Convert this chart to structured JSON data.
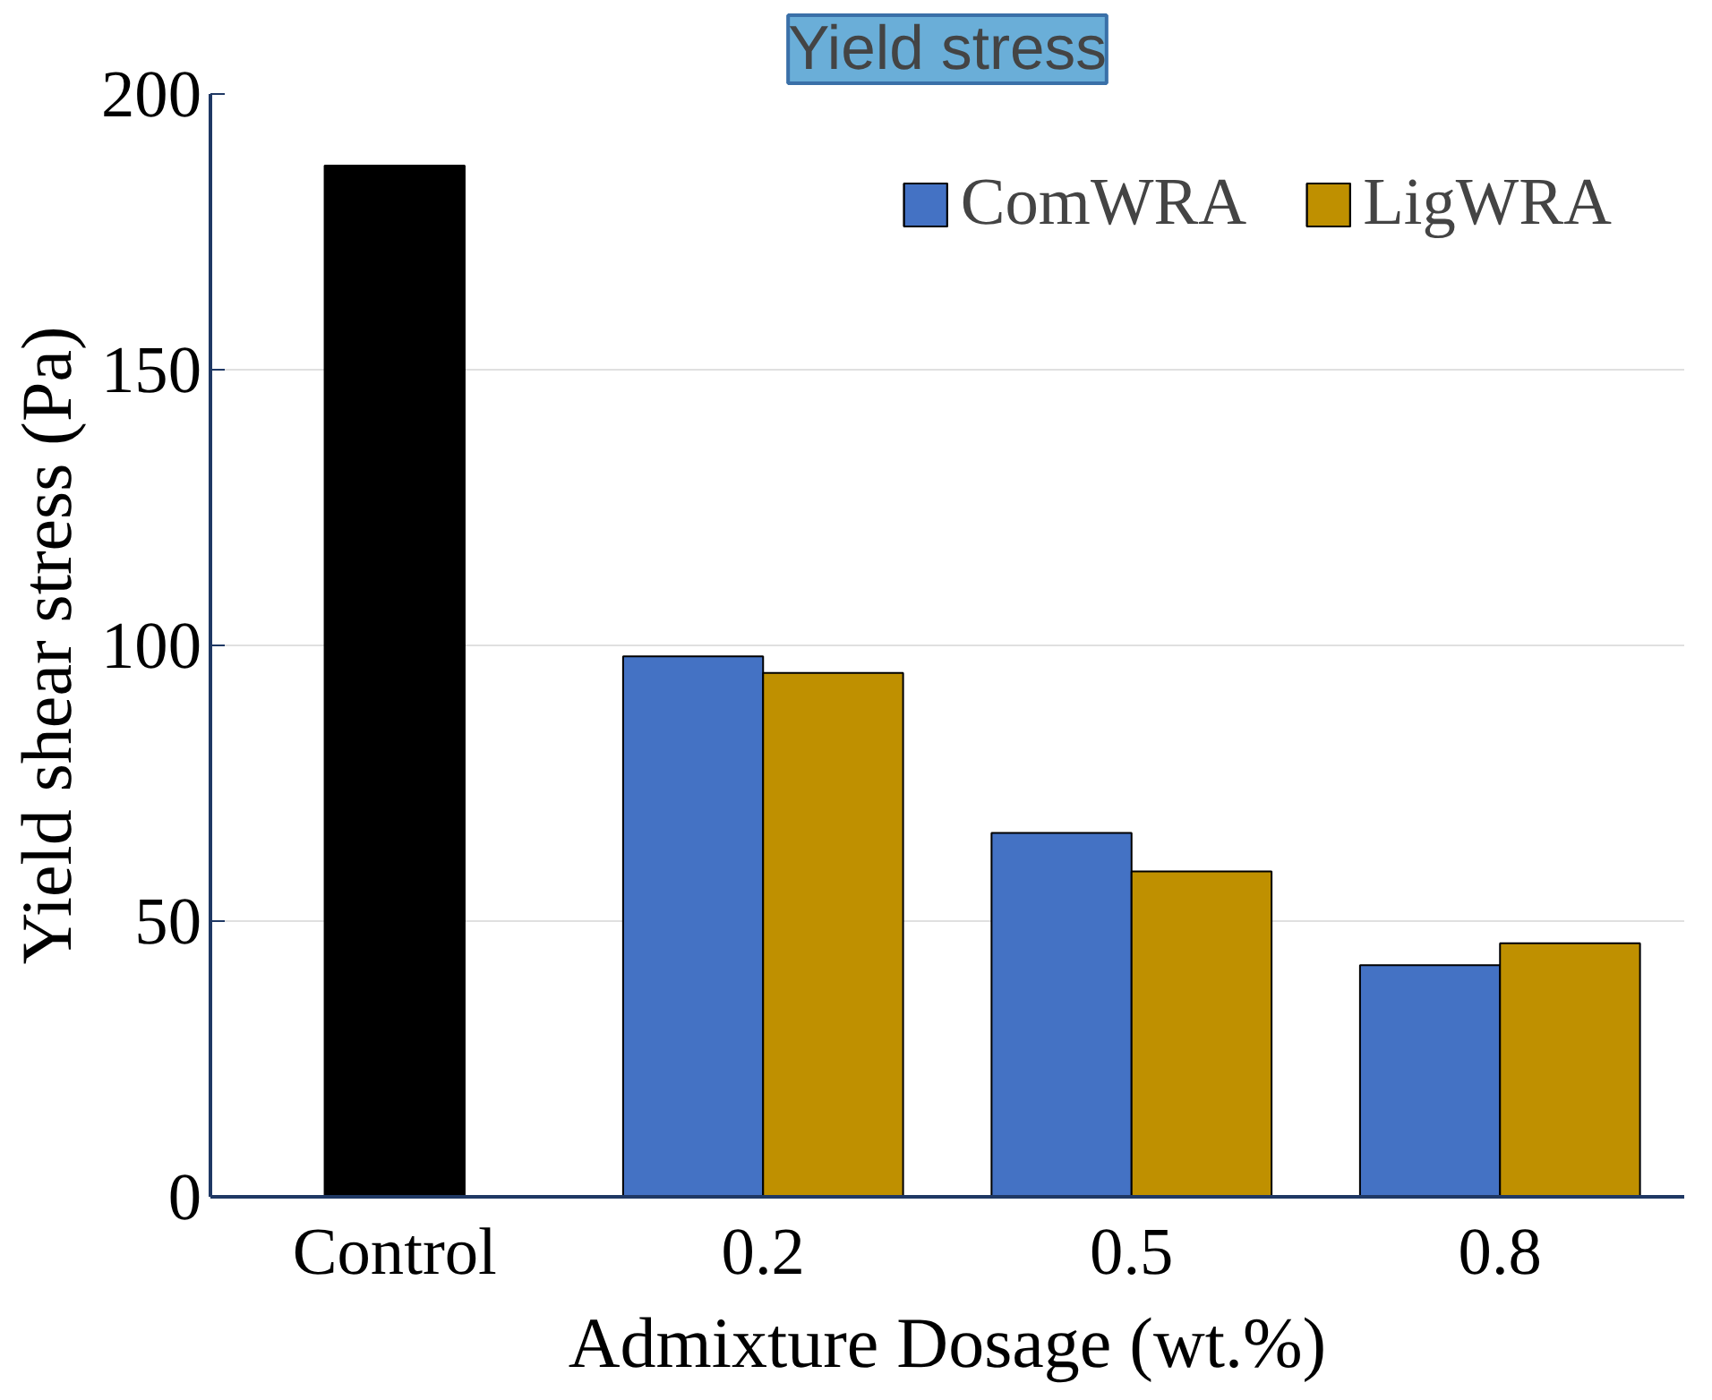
{
  "chart_data": {
    "type": "bar",
    "title": "Yield stress",
    "xlabel": "Admixture Dosage (wt.%)",
    "ylabel": "Yield shear stress (Pa)",
    "categories": [
      "Control",
      "0.2",
      "0.5",
      "0.8"
    ],
    "series": [
      {
        "color": "#000000",
        "values": [
          187,
          null,
          null,
          null
        ]
      },
      {
        "name": "ComWRA",
        "color": "#4472c4",
        "values": [
          null,
          98,
          66,
          42
        ]
      },
      {
        "name": "LigWRA",
        "color": "#bf9000",
        "values": [
          null,
          95,
          59,
          46
        ]
      }
    ],
    "ylim": [
      0,
      200
    ],
    "yticks": [
      0,
      50,
      100,
      150,
      200
    ],
    "grid": "y",
    "legend": "top right"
  }
}
